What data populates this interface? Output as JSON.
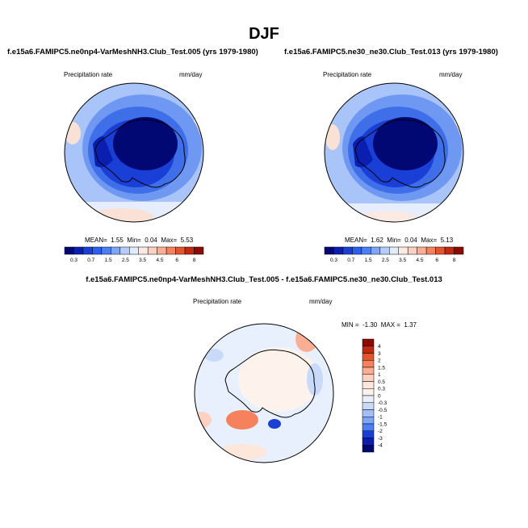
{
  "header": {
    "title": "DJF"
  },
  "colors": {
    "continent_outline": "#000000",
    "background": "#ffffff"
  },
  "chart_data": [
    {
      "type": "heatmap",
      "projection": "south-polar-stereographic",
      "title": "f.e15a6.FAMIPC5.ne0np4-VarMeshNH3.Club_Test.005 (yrs 1979-1980)",
      "variable_label": "Precipitation rate",
      "units_label": "mm/day",
      "stats": {
        "mean_label": "MEAN=",
        "mean": "1.55",
        "min_label": "Min=",
        "min": "0.04",
        "max_label": "Max=",
        "max": "5.53"
      },
      "levels": [
        0.3,
        0.7,
        1,
        1.5,
        2,
        2.5,
        3,
        3.5,
        4,
        4.5,
        5,
        6,
        7,
        8
      ],
      "colorbar_tick_labels": [
        "0.3",
        "0.7",
        "1.5",
        "2.5",
        "3.5",
        "4.5",
        "6",
        "8"
      ],
      "colorbar_colors": [
        "#020873",
        "#0a1fb0",
        "#1a3fd6",
        "#2c5ff0",
        "#4b7ff5",
        "#7ea5f8",
        "#b5cdfb",
        "#e0ebfd",
        "#fbeae4",
        "#fcd1c0",
        "#fbae93",
        "#f5825c",
        "#e2552d",
        "#c02810",
        "#8c0a00"
      ],
      "colorbar_orientation": "horizontal"
    },
    {
      "type": "heatmap",
      "projection": "south-polar-stereographic",
      "title": "f.e15a6.FAMIPC5.ne30_ne30.Club_Test.013 (yrs 1979-1980)",
      "variable_label": "Precipitation rate",
      "units_label": "mm/day",
      "stats": {
        "mean_label": "MEAN=",
        "mean": "1.62",
        "min_label": "Min=",
        "min": "0.04",
        "max_label": "Max=",
        "max": "5.13"
      },
      "levels": [
        0.3,
        0.7,
        1,
        1.5,
        2,
        2.5,
        3,
        3.5,
        4,
        4.5,
        5,
        6,
        7,
        8
      ],
      "colorbar_tick_labels": [
        "0.3",
        "0.7",
        "1.5",
        "2.5",
        "3.5",
        "4.5",
        "6",
        "8"
      ],
      "colorbar_colors": [
        "#020873",
        "#0a1fb0",
        "#1a3fd6",
        "#2c5ff0",
        "#4b7ff5",
        "#7ea5f8",
        "#b5cdfb",
        "#e0ebfd",
        "#fbeae4",
        "#fcd1c0",
        "#fbae93",
        "#f5825c",
        "#e2552d",
        "#c02810",
        "#8c0a00"
      ],
      "colorbar_orientation": "horizontal"
    },
    {
      "type": "heatmap",
      "projection": "south-polar-stereographic",
      "title": "f.e15a6.FAMIPC5.ne0np4-VarMeshNH3.Club_Test.005 - f.e15a6.FAMIPC5.ne30_ne30.Club_Test.013",
      "variable_label": "Precipitation rate",
      "units_label": "mm/day",
      "stats": {
        "min_label": "MIN =",
        "min": "-1.30",
        "max_label": "MAX =",
        "max": "1.37"
      },
      "levels": [
        -4,
        -3,
        -2,
        -1.5,
        -1,
        -0.5,
        -0.3,
        0,
        0.3,
        0.5,
        1,
        1.5,
        2,
        3,
        4
      ],
      "colorbar_tick_labels": [
        "4",
        "3",
        "2",
        "1.5",
        "1",
        "0.5",
        "0.3",
        "0",
        "-0.3",
        "-0.5",
        "-1",
        "-1.5",
        "-2",
        "-3",
        "-4"
      ],
      "colorbar_colors": [
        "#8c0a00",
        "#c02810",
        "#e2552d",
        "#f5825c",
        "#fbae93",
        "#fcd1c0",
        "#fde6da",
        "#fdf3ec",
        "#e8f0fd",
        "#c9daf9",
        "#a3bff6",
        "#7ea5f8",
        "#4b7ff5",
        "#1a3fd6",
        "#0a1fb0",
        "#020873"
      ],
      "colorbar_orientation": "vertical"
    }
  ]
}
